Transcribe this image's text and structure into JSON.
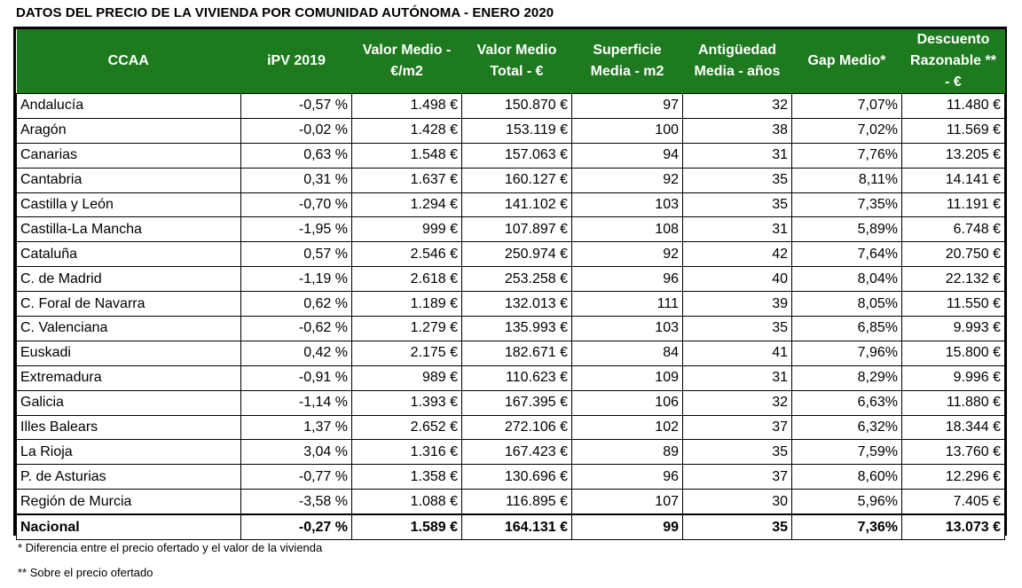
{
  "title": "DATOS DEL PRECIO DE LA VIVIENDA POR COMUNIDAD AUTÓNOMA - ENERO 2020",
  "headers": [
    "CCAA",
    "iPV 2019",
    "Valor Medio - €/m2",
    "Valor Medio Total - €",
    "Superficie Media - m2",
    "Antigüedad Media - años",
    "Gap Medio*",
    "Descuento Razonable ** - €"
  ],
  "rows": [
    [
      "Andalucía",
      "-0,57 %",
      "1.498 €",
      "150.870 €",
      "97",
      "32",
      "7,07%",
      "11.480 €"
    ],
    [
      "Aragón",
      "-0,02 %",
      "1.428 €",
      "153.119 €",
      "100",
      "38",
      "7,02%",
      "11.569 €"
    ],
    [
      "Canarias",
      "0,63 %",
      "1.548 €",
      "157.063 €",
      "94",
      "31",
      "7,76%",
      "13.205 €"
    ],
    [
      "Cantabria",
      "0,31 %",
      "1.637 €",
      "160.127 €",
      "92",
      "35",
      "8,11%",
      "14.141 €"
    ],
    [
      "Castilla y León",
      "-0,70 %",
      "1.294 €",
      "141.102 €",
      "103",
      "35",
      "7,35%",
      "11.191 €"
    ],
    [
      "Castilla-La Mancha",
      "-1,95 %",
      "999 €",
      "107.897 €",
      "108",
      "31",
      "5,89%",
      "6.748 €"
    ],
    [
      "Cataluña",
      "0,57 %",
      "2.546 €",
      "250.974 €",
      "92",
      "42",
      "7,64%",
      "20.750 €"
    ],
    [
      "C. de Madrid",
      "-1,19 %",
      "2.618 €",
      "253.258 €",
      "96",
      "40",
      "8,04%",
      "22.132 €"
    ],
    [
      "C. Foral de Navarra",
      "0,62 %",
      "1.189 €",
      "132.013 €",
      "111",
      "39",
      "8,05%",
      "11.550 €"
    ],
    [
      "C. Valenciana",
      "-0,62 %",
      "1.279 €",
      "135.993 €",
      "103",
      "35",
      "6,85%",
      "9.993 €"
    ],
    [
      "Euskadi",
      "0,42 %",
      "2.175 €",
      "182.671 €",
      "84",
      "41",
      "7,96%",
      "15.800 €"
    ],
    [
      "Extremadura",
      "-0,91 %",
      "989 €",
      "110.623 €",
      "109",
      "31",
      "8,29%",
      "9.996 €"
    ],
    [
      "Galicia",
      "-1,14 %",
      "1.393 €",
      "167.395 €",
      "106",
      "32",
      "6,63%",
      "11.880 €"
    ],
    [
      "Illes Balears",
      "1,37 %",
      "2.652 €",
      "272.106 €",
      "102",
      "37",
      "6,32%",
      "18.344 €"
    ],
    [
      "La Rioja",
      "3,04 %",
      "1.316 €",
      "167.423 €",
      "89",
      "35",
      "7,59%",
      "13.760 €"
    ],
    [
      "P. de Asturias",
      "-0,77 %",
      "1.358 €",
      "130.696 €",
      "96",
      "37",
      "8,60%",
      "12.296 €"
    ],
    [
      "Región de Murcia",
      "-3,58 %",
      "1.088 €",
      "116.895 €",
      "107",
      "30",
      "5,96%",
      "7.405 €"
    ]
  ],
  "total": [
    "Nacional",
    "-0,27 %",
    "1.589 €",
    "164.131 €",
    "99",
    "35",
    "7,36%",
    "13.073 €"
  ],
  "footnotes": [
    "* Diferencia entre el precio ofertado y el valor de la vivienda",
    "** Sobre el precio ofertado"
  ],
  "colors": {
    "header_bg": "#1e7a1e",
    "header_text": "#ffffff"
  }
}
